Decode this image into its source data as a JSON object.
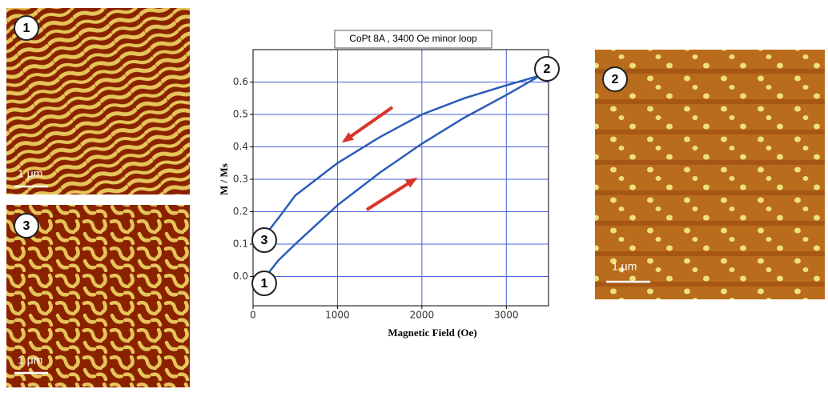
{
  "images": [
    {
      "label": "1",
      "scale": "1 μm"
    },
    {
      "label": "3",
      "scale": "1 μm"
    },
    {
      "label": "2",
      "scale": "1 μm"
    }
  ],
  "chart_data": {
    "type": "line",
    "title": "CoPt 8A ,  3400 Oe minor loop",
    "xlabel": "Magnetic Field (Oe)",
    "ylabel": "M / Ms",
    "xlim": [
      0,
      3500
    ],
    "ylim": [
      -0.09,
      0.7
    ],
    "xticks": [
      0,
      1000,
      2000,
      3000
    ],
    "yticks": [
      {
        "value": 0,
        "label": "0.0"
      },
      0.1,
      0.2,
      0.3,
      0.4,
      0.5,
      0.6
    ],
    "grid": true,
    "grid_color": "#4a5fd6",
    "series": [
      {
        "color": "#2a5cb8",
        "x": [
          150,
          300,
          500,
          750,
          1000,
          1500,
          2000,
          2500,
          3000,
          3400
        ],
        "values": [
          0.0,
          0.05,
          0.1,
          0.16,
          0.22,
          0.32,
          0.41,
          0.49,
          0.56,
          0.62
        ]
      },
      {
        "color": "#2a5cb8",
        "x": [
          3400,
          3000,
          2500,
          2000,
          1500,
          1000,
          750,
          500,
          300,
          150
        ],
        "values": [
          0.62,
          0.59,
          0.55,
          0.5,
          0.43,
          0.35,
          0.3,
          0.25,
          0.18,
          0.13
        ]
      }
    ],
    "annotations": [
      "2",
      "3",
      "1"
    ]
  }
}
